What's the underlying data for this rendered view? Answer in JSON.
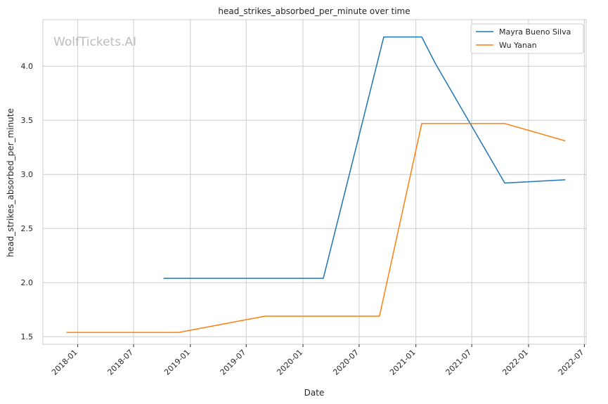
{
  "chart_data": {
    "type": "line",
    "title": "head_strikes_absorbed_per_minute over time",
    "xlabel": "Date",
    "ylabel": "head_strikes_absorbed_per_minute",
    "watermark": "WolfTickets.AI",
    "x_ticks": [
      "2018-01",
      "2018-07",
      "2019-01",
      "2019-07",
      "2020-01",
      "2020-07",
      "2021-01",
      "2021-07",
      "2022-01",
      "2022-07"
    ],
    "y_ticks": [
      1.5,
      2.0,
      2.5,
      3.0,
      3.5,
      4.0
    ],
    "xlim": [
      "2017-09-10",
      "2022-07-07"
    ],
    "ylim": [
      1.43,
      4.43
    ],
    "grid": true,
    "legend_position": "top-right",
    "colors": {
      "series_1": "#1f77b4",
      "series_2": "#ff7f0e",
      "grid": "#cccccc",
      "axes_border": "#cccccc"
    },
    "series": [
      {
        "name": "Mayra Bueno Silva",
        "color": "#1f77b4",
        "points": [
          {
            "x": "2018-10-06",
            "y": 2.04
          },
          {
            "x": "2020-03-07",
            "y": 2.04
          },
          {
            "x": "2020-09-19",
            "y": 4.27
          },
          {
            "x": "2021-01-20",
            "y": 4.27
          },
          {
            "x": "2021-03-06",
            "y": 4.02
          },
          {
            "x": "2021-10-16",
            "y": 2.92
          },
          {
            "x": "2022-04-30",
            "y": 2.95
          }
        ]
      },
      {
        "name": "Wu Yanan",
        "color": "#ff7f0e",
        "points": [
          {
            "x": "2017-11-25",
            "y": 1.54
          },
          {
            "x": "2018-11-24",
            "y": 1.54
          },
          {
            "x": "2019-08-31",
            "y": 1.69
          },
          {
            "x": "2020-09-05",
            "y": 1.69
          },
          {
            "x": "2021-01-20",
            "y": 3.47
          },
          {
            "x": "2021-10-16",
            "y": 3.47
          },
          {
            "x": "2022-04-30",
            "y": 3.31
          }
        ]
      }
    ]
  }
}
